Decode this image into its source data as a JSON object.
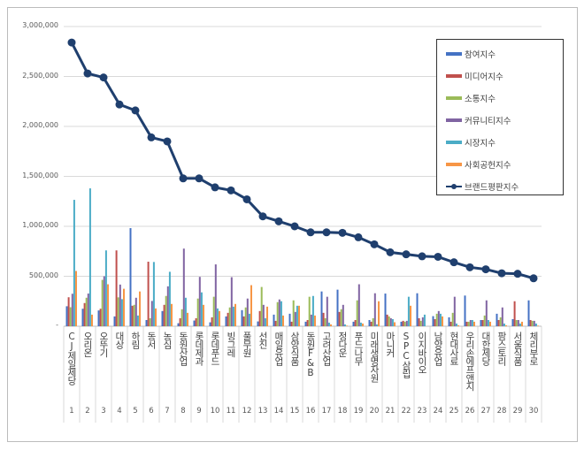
{
  "chart_data": {
    "type": "bar",
    "title": "",
    "xlabel": "",
    "ylabel": "",
    "ylim": [
      0,
      3000000
    ],
    "yticks": [
      "-",
      "500,000",
      "1,000,000",
      "1,500,000",
      "2,000,000",
      "2,500,000",
      "3,000,000"
    ],
    "grid": true,
    "legend_position": "top-right",
    "categories": [
      "CJ제일제당",
      "오리온",
      "오뚜기",
      "대상",
      "하림",
      "동서",
      "농심",
      "동원산업",
      "롯데제과",
      "롯데푸드",
      "빙그레",
      "풀무원",
      "선진",
      "매일유업",
      "삼양식품",
      "동원F&B",
      "고려산업",
      "정다운",
      "푸드나무",
      "미래생명자원",
      "마니커",
      "SPC삼립",
      "이지바이오",
      "남양유업",
      "현대사료",
      "우리손에프앤지",
      "대한제당",
      "팜스토리",
      "서울식품",
      "체리부로"
    ],
    "category_numbers": [
      "1",
      "2",
      "3",
      "4",
      "5",
      "6",
      "7",
      "8",
      "9",
      "10",
      "11",
      "12",
      "13",
      "14",
      "15",
      "16",
      "17",
      "18",
      "19",
      "20",
      "21",
      "22",
      "23",
      "24",
      "25",
      "26",
      "27",
      "28",
      "29",
      "30"
    ],
    "series": [
      {
        "name": "참여지수",
        "type": "bar",
        "color": "#4472c4",
        "values": [
          200000,
          175000,
          158000,
          98000,
          982000,
          62000,
          152000,
          30000,
          57000,
          39000,
          98000,
          161000,
          48000,
          116000,
          125000,
          45000,
          348000,
          366000,
          45000,
          62000,
          327000,
          45000,
          330000,
          101000,
          89000,
          307000,
          62000,
          125000,
          71000,
          259000
        ]
      },
      {
        "name": "미디어지수",
        "type": "bar",
        "color": "#c0504d",
        "values": [
          290000,
          232000,
          175000,
          759000,
          205000,
          646000,
          214000,
          80000,
          80000,
          89000,
          134000,
          98000,
          152000,
          54000,
          45000,
          62000,
          134000,
          143000,
          62000,
          45000,
          116000,
          54000,
          80000,
          71000,
          45000,
          45000,
          62000,
          62000,
          250000,
          62000
        ]
      },
      {
        "name": "소통지수",
        "type": "bar",
        "color": "#9bbb59",
        "values": [
          190000,
          285000,
          464000,
          289000,
          214000,
          80000,
          303000,
          170000,
          277000,
          295000,
          188000,
          188000,
          393000,
          241000,
          259000,
          295000,
          80000,
          170000,
          259000,
          80000,
          98000,
          45000,
          54000,
          125000,
          134000,
          45000,
          107000,
          89000,
          62000,
          54000
        ]
      },
      {
        "name": "커뮤니티지수",
        "type": "bar",
        "color": "#8064a2",
        "values": [
          325000,
          327000,
          500000,
          417000,
          285000,
          253000,
          399000,
          777000,
          494000,
          619000,
          491000,
          277000,
          214000,
          268000,
          143000,
          116000,
          295000,
          214000,
          420000,
          330000,
          80000,
          54000,
          89000,
          152000,
          295000,
          62000,
          259000,
          188000,
          62000,
          54000
        ]
      },
      {
        "name": "시장지수",
        "type": "bar",
        "color": "#4bacc6",
        "values": [
          1265000,
          1380000,
          759000,
          271000,
          107000,
          643000,
          545000,
          285000,
          339000,
          178000,
          196000,
          125000,
          80000,
          250000,
          205000,
          303000,
          36000,
          18000,
          36000,
          18000,
          71000,
          295000,
          116000,
          125000,
          27000,
          62000,
          62000,
          27000,
          27000,
          27000
        ]
      },
      {
        "name": "사회공헌지수",
        "type": "bar",
        "color": "#f79646",
        "values": [
          553000,
          116000,
          420000,
          375000,
          348000,
          178000,
          223000,
          134000,
          214000,
          152000,
          223000,
          411000,
          196000,
          107000,
          205000,
          107000,
          18000,
          6000,
          27000,
          250000,
          40000,
          205000,
          0,
          98000,
          9000,
          45000,
          45000,
          9000,
          45000,
          6000
        ]
      },
      {
        "name": "브랜드평판지수",
        "type": "line",
        "color": "#1f3f6e",
        "values": [
          2840000,
          2530000,
          2490000,
          2220000,
          2160000,
          1890000,
          1850000,
          1480000,
          1480000,
          1390000,
          1360000,
          1270000,
          1100000,
          1050000,
          1000000,
          940000,
          940000,
          935000,
          890000,
          820000,
          740000,
          720000,
          700000,
          695000,
          640000,
          590000,
          570000,
          530000,
          525000,
          480000
        ]
      }
    ]
  }
}
